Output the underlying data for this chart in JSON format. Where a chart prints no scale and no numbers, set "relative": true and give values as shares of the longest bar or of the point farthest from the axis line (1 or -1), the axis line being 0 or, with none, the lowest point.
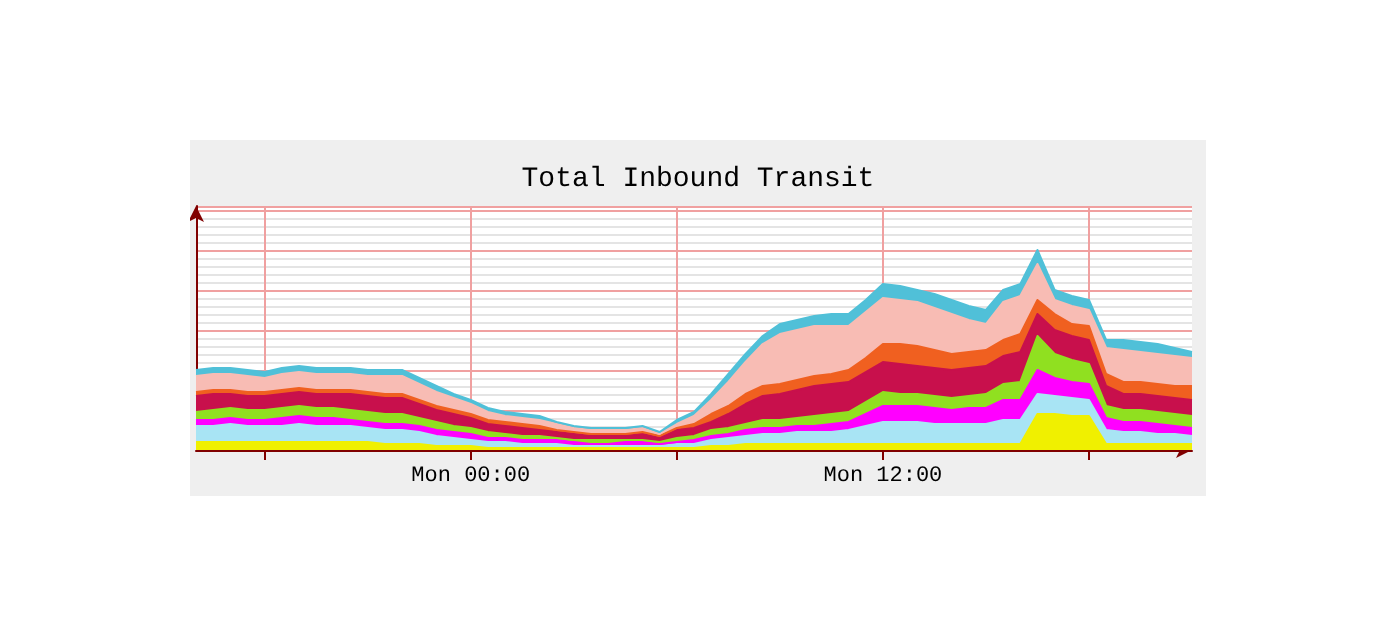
{
  "chart_data": {
    "type": "area",
    "title": "Total Inbound Transit",
    "relative": true,
    "stacked": true,
    "grid": true,
    "categories": [
      null,
      null,
      null,
      null,
      null,
      null,
      null,
      null,
      null,
      null,
      null,
      null,
      null,
      null,
      null,
      null,
      "Mon 00:00",
      null,
      null,
      null,
      null,
      null,
      null,
      null,
      null,
      null,
      null,
      null,
      null,
      null,
      null,
      null,
      null,
      null,
      null,
      null,
      null,
      null,
      null,
      null,
      "Mon 12:00",
      null,
      null,
      null,
      null,
      null,
      null,
      null,
      null,
      null,
      null,
      null,
      null,
      null,
      null,
      null,
      null,
      null,
      null
    ],
    "series": [
      {
        "color": "#f0f000",
        "values": [
          0.04,
          0.04,
          0.04,
          0.04,
          0.04,
          0.04,
          0.04,
          0.04,
          0.04,
          0.04,
          0.04,
          0.03,
          0.03,
          0.03,
          0.02,
          0.02,
          0.02,
          0.01,
          0.01,
          0.01,
          0.01,
          0.01,
          0.01,
          0.01,
          0.01,
          0.01,
          0.01,
          0.01,
          0.01,
          0.01,
          0.02,
          0.02,
          0.03,
          0.03,
          0.03,
          0.03,
          0.03,
          0.03,
          0.03,
          0.03,
          0.03,
          0.03,
          0.03,
          0.03,
          0.03,
          0.03,
          0.03,
          0.03,
          0.03,
          0.18,
          0.18,
          0.17,
          0.17,
          0.03,
          0.03,
          0.03,
          0.03,
          0.03,
          0.03
        ]
      },
      {
        "color": "#a8e4f4",
        "values": [
          0.08,
          0.08,
          0.09,
          0.08,
          0.08,
          0.08,
          0.09,
          0.08,
          0.08,
          0.08,
          0.07,
          0.07,
          0.07,
          0.06,
          0.05,
          0.04,
          0.03,
          0.03,
          0.03,
          0.02,
          0.02,
          0.02,
          0.01,
          0.01,
          0.01,
          0.01,
          0.01,
          0.01,
          0.02,
          0.02,
          0.03,
          0.04,
          0.04,
          0.05,
          0.05,
          0.06,
          0.06,
          0.06,
          0.07,
          0.09,
          0.11,
          0.11,
          0.11,
          0.1,
          0.1,
          0.1,
          0.1,
          0.12,
          0.12,
          0.1,
          0.09,
          0.09,
          0.08,
          0.07,
          0.06,
          0.06,
          0.05,
          0.05,
          0.04
        ]
      },
      {
        "color": "#ff00ff",
        "values": [
          0.03,
          0.03,
          0.03,
          0.03,
          0.03,
          0.04,
          0.04,
          0.04,
          0.04,
          0.03,
          0.03,
          0.03,
          0.03,
          0.03,
          0.03,
          0.03,
          0.03,
          0.02,
          0.02,
          0.02,
          0.02,
          0.02,
          0.02,
          0.01,
          0.01,
          0.02,
          0.02,
          0.01,
          0.01,
          0.02,
          0.02,
          0.02,
          0.03,
          0.03,
          0.03,
          0.03,
          0.03,
          0.04,
          0.04,
          0.06,
          0.08,
          0.08,
          0.08,
          0.08,
          0.07,
          0.08,
          0.08,
          0.1,
          0.1,
          0.12,
          0.09,
          0.08,
          0.08,
          0.06,
          0.05,
          0.05,
          0.05,
          0.04,
          0.04
        ]
      },
      {
        "color": "#90e020",
        "values": [
          0.04,
          0.05,
          0.05,
          0.05,
          0.05,
          0.05,
          0.05,
          0.05,
          0.05,
          0.05,
          0.05,
          0.05,
          0.05,
          0.04,
          0.04,
          0.03,
          0.03,
          0.03,
          0.02,
          0.02,
          0.02,
          0.01,
          0.01,
          0.02,
          0.02,
          0.01,
          0.01,
          0.01,
          0.02,
          0.02,
          0.03,
          0.03,
          0.03,
          0.04,
          0.04,
          0.04,
          0.05,
          0.05,
          0.05,
          0.06,
          0.07,
          0.06,
          0.06,
          0.06,
          0.06,
          0.06,
          0.07,
          0.08,
          0.09,
          0.17,
          0.12,
          0.11,
          0.1,
          0.06,
          0.06,
          0.06,
          0.06,
          0.06,
          0.06
        ]
      },
      {
        "color": "#c8104c",
        "values": [
          0.08,
          0.08,
          0.07,
          0.07,
          0.07,
          0.07,
          0.07,
          0.07,
          0.07,
          0.08,
          0.08,
          0.08,
          0.08,
          0.07,
          0.06,
          0.06,
          0.05,
          0.04,
          0.04,
          0.04,
          0.03,
          0.03,
          0.03,
          0.02,
          0.02,
          0.02,
          0.03,
          0.02,
          0.04,
          0.04,
          0.04,
          0.07,
          0.1,
          0.12,
          0.13,
          0.14,
          0.15,
          0.15,
          0.15,
          0.15,
          0.15,
          0.15,
          0.14,
          0.14,
          0.14,
          0.14,
          0.14,
          0.14,
          0.15,
          0.11,
          0.12,
          0.12,
          0.12,
          0.1,
          0.08,
          0.08,
          0.08,
          0.08,
          0.08
        ]
      },
      {
        "color": "#f06020",
        "values": [
          0.02,
          0.02,
          0.02,
          0.02,
          0.02,
          0.02,
          0.02,
          0.02,
          0.02,
          0.02,
          0.02,
          0.02,
          0.02,
          0.02,
          0.02,
          0.02,
          0.02,
          0.02,
          0.02,
          0.02,
          0.02,
          0.01,
          0.01,
          0.01,
          0.01,
          0.01,
          0.01,
          0.01,
          0.01,
          0.02,
          0.04,
          0.04,
          0.05,
          0.05,
          0.05,
          0.05,
          0.05,
          0.05,
          0.06,
          0.07,
          0.09,
          0.1,
          0.1,
          0.09,
          0.08,
          0.08,
          0.08,
          0.08,
          0.09,
          0.07,
          0.08,
          0.06,
          0.07,
          0.06,
          0.06,
          0.06,
          0.06,
          0.06,
          0.07
        ]
      },
      {
        "color": "#f8bcb4",
        "values": [
          0.08,
          0.08,
          0.08,
          0.08,
          0.07,
          0.08,
          0.08,
          0.08,
          0.08,
          0.08,
          0.08,
          0.09,
          0.09,
          0.08,
          0.07,
          0.06,
          0.05,
          0.04,
          0.03,
          0.03,
          0.03,
          0.03,
          0.02,
          0.02,
          0.02,
          0.02,
          0.02,
          0.01,
          0.02,
          0.04,
          0.07,
          0.12,
          0.16,
          0.21,
          0.25,
          0.25,
          0.25,
          0.24,
          0.22,
          0.23,
          0.23,
          0.22,
          0.22,
          0.21,
          0.2,
          0.16,
          0.13,
          0.19,
          0.19,
          0.18,
          0.07,
          0.09,
          0.08,
          0.13,
          0.16,
          0.15,
          0.15,
          0.15,
          0.14
        ]
      },
      {
        "color": "#50c0d8",
        "values": [
          0.03,
          0.03,
          0.03,
          0.03,
          0.03,
          0.03,
          0.03,
          0.03,
          0.03,
          0.03,
          0.03,
          0.03,
          0.03,
          0.03,
          0.03,
          0.02,
          0.02,
          0.02,
          0.02,
          0.02,
          0.02,
          0.01,
          0.01,
          0.01,
          0.01,
          0.01,
          0.01,
          0.01,
          0.02,
          0.02,
          0.03,
          0.04,
          0.04,
          0.04,
          0.05,
          0.05,
          0.05,
          0.06,
          0.06,
          0.06,
          0.07,
          0.07,
          0.06,
          0.07,
          0.07,
          0.07,
          0.07,
          0.06,
          0.06,
          0.07,
          0.05,
          0.05,
          0.05,
          0.04,
          0.05,
          0.05,
          0.05,
          0.04,
          0.03
        ]
      }
    ]
  }
}
